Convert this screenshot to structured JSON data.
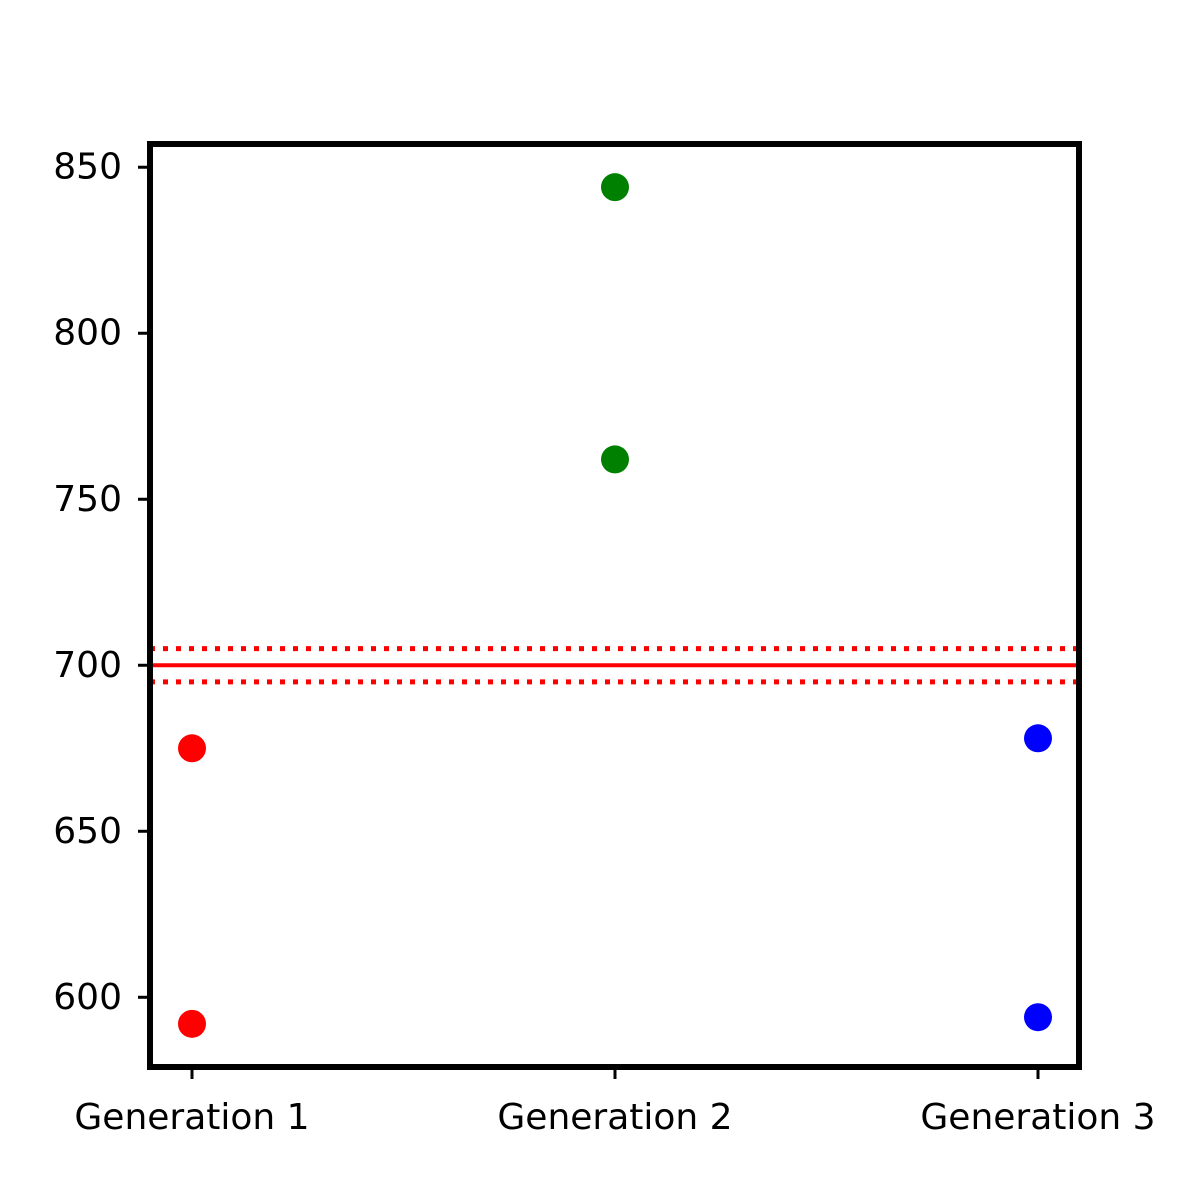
{
  "chart_data": {
    "type": "scatter",
    "categories": [
      "Generation 1",
      "Generation 2",
      "Generation 3"
    ],
    "series": [
      {
        "category": "Generation 1",
        "color": "#ff0000",
        "values": [
          675,
          592
        ]
      },
      {
        "category": "Generation 2",
        "color": "#008000",
        "values": [
          844,
          762
        ]
      },
      {
        "category": "Generation 3",
        "color": "#0000ff",
        "values": [
          678,
          594
        ]
      }
    ],
    "reference_lines": [
      {
        "y": 700,
        "style": "solid",
        "color": "#ff0000"
      },
      {
        "y": 705,
        "style": "dotted",
        "color": "#ff0000"
      },
      {
        "y": 695,
        "style": "dotted",
        "color": "#ff0000"
      }
    ],
    "yticks": [
      600,
      650,
      700,
      750,
      800,
      850
    ],
    "ylim": [
      579,
      857
    ],
    "title": "",
    "xlabel": "",
    "ylabel": "",
    "grid": false,
    "legend": "none"
  }
}
